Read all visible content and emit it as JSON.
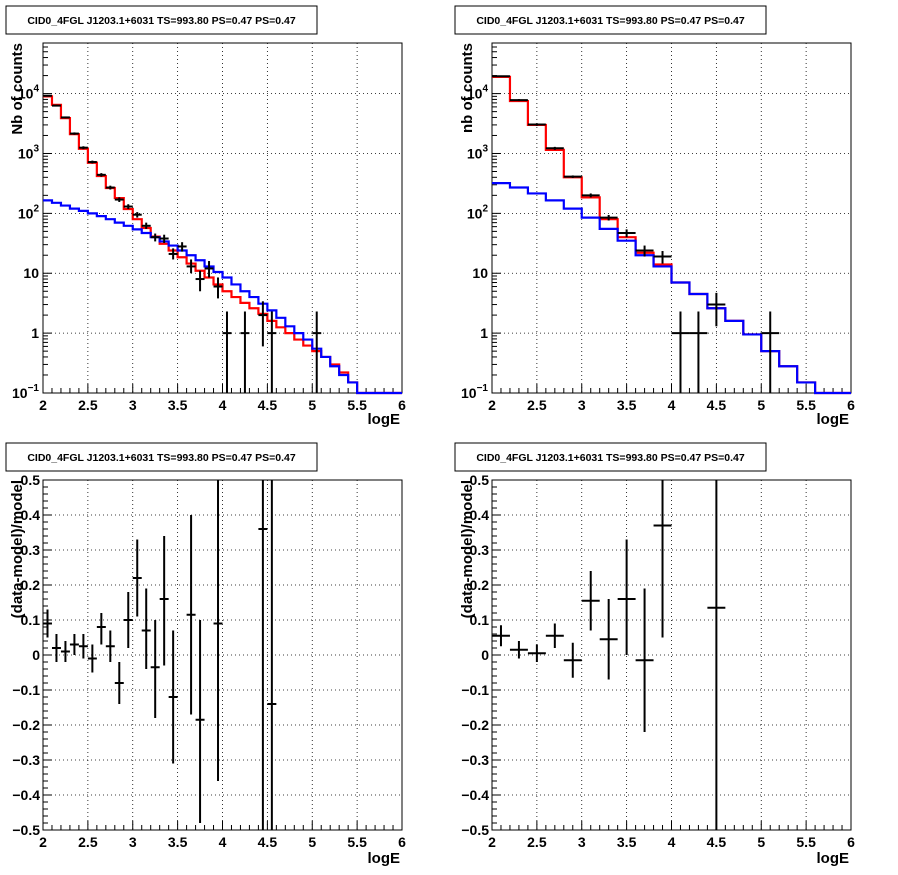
{
  "chart_data": [
    {
      "id": "top-left",
      "type": "line",
      "title": "CID0_4FGL J1203.1+6031 TS=993.80 PS=0.47 PS=0.47",
      "xlabel": "logE",
      "ylabel": "Nb of counts",
      "log_y": true,
      "grid": true,
      "xlim": [
        2,
        6
      ],
      "ylim": [
        0.1,
        70000
      ],
      "x_ticks": [
        "2",
        "2.5",
        "3",
        "3.5",
        "4",
        "4.5",
        "5",
        "5.5",
        "6"
      ],
      "y_ticks": [
        {
          "v": 0.1,
          "label": "10",
          "exp": "−1"
        },
        {
          "v": 1,
          "label": "1",
          "exp": ""
        },
        {
          "v": 10,
          "label": "10",
          "exp": ""
        },
        {
          "v": 100,
          "label": "10",
          "exp": "2"
        },
        {
          "v": 1000,
          "label": "10",
          "exp": "3"
        },
        {
          "v": 10000,
          "label": "10",
          "exp": "4"
        }
      ],
      "bin_edges": [
        2,
        2.1,
        2.2,
        2.3,
        2.4,
        2.5,
        2.6,
        2.7,
        2.8,
        2.9,
        3,
        3.1,
        3.2,
        3.3,
        3.4,
        3.5,
        3.6,
        3.7,
        3.8,
        3.9,
        4,
        4.1,
        4.2,
        4.3,
        4.4,
        4.5,
        4.6,
        4.7,
        4.8,
        4.9,
        5,
        5.1,
        5.2,
        5.3,
        5.4,
        5.5,
        5.6,
        5.7,
        5.8,
        5.9,
        6
      ],
      "series": [
        {
          "name": "",
          "color": "#ff0000",
          "kind": "hist",
          "values": [
            9000,
            6500,
            3900,
            2100,
            1200,
            700,
            420,
            265,
            180,
            118,
            80,
            57,
            41,
            31,
            24,
            18.5,
            14.5,
            11,
            8.5,
            6.5,
            5,
            4,
            3.2,
            2.6,
            2.1,
            1.6,
            1.25,
            1,
            0.78,
            0.62,
            0.5,
            0.4,
            0.3,
            0.22,
            0.15,
            0.1,
            0.1,
            0.1,
            0.1,
            0.1
          ]
        },
        {
          "name": "",
          "color": "#0000ff",
          "kind": "hist",
          "values": [
            165,
            150,
            135,
            120,
            110,
            100,
            90,
            80,
            70,
            62,
            54,
            47,
            40,
            34,
            29,
            24,
            20,
            16.5,
            13,
            10.5,
            8.5,
            6.5,
            5,
            4,
            3.1,
            2.4,
            1.8,
            1.3,
            1.0,
            0.78,
            0.55,
            0.4,
            0.28,
            0.2,
            0.15,
            0.1,
            0.1,
            0.1,
            0.1,
            0.1
          ]
        },
        {
          "name": "",
          "color": "#000000",
          "kind": "points",
          "points": [
            {
              "x": 2.05,
              "y": 9200,
              "lo": 8950,
              "hi": 9450
            },
            {
              "x": 2.15,
              "y": 6300,
              "lo": 6100,
              "hi": 6500
            },
            {
              "x": 2.25,
              "y": 4000,
              "lo": 3850,
              "hi": 4150
            },
            {
              "x": 2.35,
              "y": 2150,
              "lo": 2050,
              "hi": 2250
            },
            {
              "x": 2.45,
              "y": 1250,
              "lo": 1180,
              "hi": 1320
            },
            {
              "x": 2.55,
              "y": 720,
              "lo": 680,
              "hi": 760
            },
            {
              "x": 2.65,
              "y": 440,
              "lo": 410,
              "hi": 470
            },
            {
              "x": 2.75,
              "y": 270,
              "lo": 250,
              "hi": 290
            },
            {
              "x": 2.85,
              "y": 170,
              "lo": 155,
              "hi": 185
            },
            {
              "x": 2.95,
              "y": 130,
              "lo": 118,
              "hi": 142
            },
            {
              "x": 3.05,
              "y": 95,
              "lo": 85,
              "hi": 105
            },
            {
              "x": 3.15,
              "y": 62,
              "lo": 55,
              "hi": 70
            },
            {
              "x": 3.25,
              "y": 40,
              "lo": 34,
              "hi": 46
            },
            {
              "x": 3.35,
              "y": 38,
              "lo": 32,
              "hi": 44
            },
            {
              "x": 3.45,
              "y": 21,
              "lo": 17,
              "hi": 26
            },
            {
              "x": 3.55,
              "y": 28,
              "lo": 23,
              "hi": 33
            },
            {
              "x": 3.65,
              "y": 13,
              "lo": 10,
              "hi": 17
            },
            {
              "x": 3.75,
              "y": 8,
              "lo": 5,
              "hi": 11
            },
            {
              "x": 3.85,
              "y": 12,
              "lo": 8.5,
              "hi": 16
            },
            {
              "x": 3.95,
              "y": 6,
              "lo": 3.8,
              "hi": 8.5
            },
            {
              "x": 4.05,
              "y": 1,
              "lo": 0.1,
              "hi": 2.3
            },
            {
              "x": 4.25,
              "y": 1,
              "lo": 0.1,
              "hi": 2.3
            },
            {
              "x": 4.45,
              "y": 2,
              "lo": 0.6,
              "hi": 3.4
            },
            {
              "x": 4.55,
              "y": 1,
              "lo": 0.1,
              "hi": 2.3
            },
            {
              "x": 5.05,
              "y": 1,
              "lo": 0.1,
              "hi": 2.3
            }
          ]
        }
      ]
    },
    {
      "id": "top-right",
      "type": "line",
      "title": "CID0_4FGL J1203.1+6031 TS=993.80 PS=0.47 PS=0.47",
      "xlabel": "logE",
      "ylabel": "nb of counts",
      "log_y": true,
      "grid": true,
      "xlim": [
        2,
        6
      ],
      "ylim": [
        0.1,
        70000
      ],
      "x_ticks": [
        "2",
        "2.5",
        "3",
        "3.5",
        "4",
        "4.5",
        "5",
        "5.5",
        "6"
      ],
      "y_ticks": [
        {
          "v": 0.1,
          "label": "10",
          "exp": "−1"
        },
        {
          "v": 1,
          "label": "1",
          "exp": ""
        },
        {
          "v": 10,
          "label": "10",
          "exp": ""
        },
        {
          "v": 100,
          "label": "10",
          "exp": "2"
        },
        {
          "v": 1000,
          "label": "10",
          "exp": "3"
        },
        {
          "v": 10000,
          "label": "10",
          "exp": "4"
        }
      ],
      "bin_edges": [
        2,
        2.2,
        2.4,
        2.6,
        2.8,
        3,
        3.2,
        3.4,
        3.6,
        3.8,
        4,
        4.2,
        4.4,
        4.6,
        4.8,
        5,
        5.2,
        5.4,
        5.6,
        5.8,
        6
      ],
      "series": [
        {
          "name": "",
          "color": "#ff0000",
          "kind": "hist",
          "values": [
            19000,
            7500,
            3000,
            1150,
            400,
            185,
            80,
            40,
            22,
            14,
            7,
            4.5,
            2.6,
            1.6,
            0.95,
            0.5,
            0.28,
            0.15,
            0.1,
            0.1
          ]
        },
        {
          "name": "",
          "color": "#0000ff",
          "kind": "hist",
          "values": [
            320,
            270,
            215,
            165,
            120,
            85,
            55,
            35,
            20,
            13,
            7,
            4.5,
            2.6,
            1.6,
            0.95,
            0.5,
            0.28,
            0.15,
            0.1,
            0.1
          ]
        },
        {
          "name": "",
          "color": "#000000",
          "kind": "points",
          "points": [
            {
              "x": 2.1,
              "y": 19500,
              "lo": 19000,
              "hi": 20000
            },
            {
              "x": 2.3,
              "y": 7800,
              "lo": 7500,
              "hi": 8100
            },
            {
              "x": 2.5,
              "y": 3050,
              "lo": 2900,
              "hi": 3200
            },
            {
              "x": 2.7,
              "y": 1220,
              "lo": 1150,
              "hi": 1290
            },
            {
              "x": 2.9,
              "y": 410,
              "lo": 390,
              "hi": 430
            },
            {
              "x": 3.1,
              "y": 200,
              "lo": 185,
              "hi": 215
            },
            {
              "x": 3.3,
              "y": 85,
              "lo": 76,
              "hi": 94
            },
            {
              "x": 3.5,
              "y": 47,
              "lo": 40,
              "hi": 54
            },
            {
              "x": 3.7,
              "y": 24,
              "lo": 19,
              "hi": 29
            },
            {
              "x": 3.9,
              "y": 19,
              "lo": 14.5,
              "hi": 23.5
            },
            {
              "x": 4.1,
              "y": 1,
              "lo": 0.1,
              "hi": 2.3
            },
            {
              "x": 4.3,
              "y": 1,
              "lo": 0.1,
              "hi": 2.3
            },
            {
              "x": 4.5,
              "y": 3,
              "lo": 1.3,
              "hi": 4.7
            },
            {
              "x": 5.1,
              "y": 1,
              "lo": 0.1,
              "hi": 2.3
            }
          ]
        }
      ]
    },
    {
      "id": "bottom-left",
      "type": "scatter",
      "title": "CID0_4FGL J1203.1+6031 TS=993.80 PS=0.47 PS=0.47",
      "xlabel": "logE",
      "ylabel": "(data-model)/model",
      "log_y": false,
      "grid": true,
      "xlim": [
        2,
        6
      ],
      "ylim": [
        -0.5,
        0.5
      ],
      "x_ticks": [
        "2",
        "2.5",
        "3",
        "3.5",
        "4",
        "4.5",
        "5",
        "5.5",
        "6"
      ],
      "y_ticks": [
        "−0.5",
        "−0.4",
        "−0.3",
        "−0.2",
        "−0.1",
        "0",
        "0.1",
        "0.2",
        "0.3",
        "0.4",
        "0.5"
      ],
      "bin_width": 0.1,
      "series": [
        {
          "name": "",
          "color": "#000000",
          "kind": "points",
          "points": [
            {
              "x": 2.05,
              "y": 0.09,
              "lo": 0.05,
              "hi": 0.13
            },
            {
              "x": 2.15,
              "y": 0.02,
              "lo": -0.02,
              "hi": 0.06
            },
            {
              "x": 2.25,
              "y": 0.01,
              "lo": -0.02,
              "hi": 0.04
            },
            {
              "x": 2.35,
              "y": 0.03,
              "lo": 0.0,
              "hi": 0.06
            },
            {
              "x": 2.45,
              "y": 0.025,
              "lo": -0.01,
              "hi": 0.06
            },
            {
              "x": 2.55,
              "y": -0.01,
              "lo": -0.05,
              "hi": 0.03
            },
            {
              "x": 2.65,
              "y": 0.08,
              "lo": 0.03,
              "hi": 0.12
            },
            {
              "x": 2.75,
              "y": 0.025,
              "lo": -0.02,
              "hi": 0.07
            },
            {
              "x": 2.85,
              "y": -0.08,
              "lo": -0.14,
              "hi": -0.02
            },
            {
              "x": 2.95,
              "y": 0.1,
              "lo": 0.02,
              "hi": 0.18
            },
            {
              "x": 3.05,
              "y": 0.22,
              "lo": 0.11,
              "hi": 0.33
            },
            {
              "x": 3.15,
              "y": 0.07,
              "lo": -0.04,
              "hi": 0.19
            },
            {
              "x": 3.25,
              "y": -0.035,
              "lo": -0.18,
              "hi": 0.1
            },
            {
              "x": 3.35,
              "y": 0.16,
              "lo": -0.03,
              "hi": 0.34
            },
            {
              "x": 3.45,
              "y": -0.12,
              "lo": -0.31,
              "hi": 0.07
            },
            {
              "x": 3.65,
              "y": 0.115,
              "lo": -0.17,
              "hi": 0.4
            },
            {
              "x": 3.75,
              "y": -0.185,
              "lo": -0.48,
              "hi": 0.1
            },
            {
              "x": 3.95,
              "y": 0.09,
              "lo": -0.36,
              "hi": 0.5
            },
            {
              "x": 4.45,
              "y": 0.36,
              "lo": -0.5,
              "hi": 0.5
            },
            {
              "x": 4.55,
              "y": -0.14,
              "lo": -0.5,
              "hi": 0.5
            }
          ]
        }
      ]
    },
    {
      "id": "bottom-right",
      "type": "scatter",
      "title": "CID0_4FGL J1203.1+6031 TS=993.80 PS=0.47 PS=0.47",
      "xlabel": "logE",
      "ylabel": "(data-model)/model",
      "log_y": false,
      "grid": true,
      "xlim": [
        2,
        6
      ],
      "ylim": [
        -0.5,
        0.5
      ],
      "x_ticks": [
        "2",
        "2.5",
        "3",
        "3.5",
        "4",
        "4.5",
        "5",
        "5.5",
        "6"
      ],
      "y_ticks": [
        "−0.5",
        "−0.4",
        "−0.3",
        "−0.2",
        "−0.1",
        "0",
        "0.1",
        "0.2",
        "0.3",
        "0.4",
        "0.5"
      ],
      "bin_width": 0.2,
      "series": [
        {
          "name": "",
          "color": "#000000",
          "kind": "points",
          "points": [
            {
              "x": 2.1,
              "y": 0.055,
              "lo": 0.025,
              "hi": 0.085
            },
            {
              "x": 2.3,
              "y": 0.015,
              "lo": -0.01,
              "hi": 0.04
            },
            {
              "x": 2.5,
              "y": 0.005,
              "lo": -0.02,
              "hi": 0.03
            },
            {
              "x": 2.7,
              "y": 0.055,
              "lo": 0.02,
              "hi": 0.09
            },
            {
              "x": 2.9,
              "y": -0.015,
              "lo": -0.065,
              "hi": 0.035
            },
            {
              "x": 3.1,
              "y": 0.155,
              "lo": 0.07,
              "hi": 0.24
            },
            {
              "x": 3.3,
              "y": 0.045,
              "lo": -0.07,
              "hi": 0.16
            },
            {
              "x": 3.5,
              "y": 0.16,
              "lo": 0.0,
              "hi": 0.33
            },
            {
              "x": 3.7,
              "y": -0.015,
              "lo": -0.22,
              "hi": 0.19
            },
            {
              "x": 3.9,
              "y": 0.37,
              "lo": 0.05,
              "hi": 0.5
            },
            {
              "x": 4.5,
              "y": 0.135,
              "lo": -0.5,
              "hi": 0.5
            }
          ]
        }
      ]
    }
  ]
}
